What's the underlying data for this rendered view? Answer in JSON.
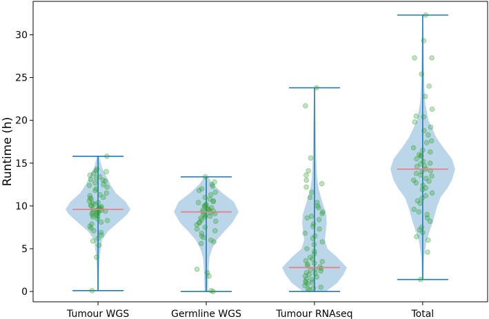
{
  "chart_data": {
    "type": "violin",
    "title": "",
    "xlabel": "",
    "ylabel": "Runtime (h)",
    "ylim": [
      -1.2,
      33.9
    ],
    "yticks": [
      0,
      5,
      10,
      15,
      20,
      25,
      30
    ],
    "categories": [
      "Tumour WGS",
      "Germline WGS",
      "Tumour RNAseq",
      "Total"
    ],
    "series": [
      {
        "name": "Tumour WGS",
        "min": 0.1,
        "max": 15.8,
        "median": 9.6,
        "density": [
          [
            0.1,
            0.02
          ],
          [
            2,
            0.03
          ],
          [
            4,
            0.05
          ],
          [
            6,
            0.12
          ],
          [
            7,
            0.3
          ],
          [
            8,
            0.6
          ],
          [
            9,
            0.9
          ],
          [
            9.6,
            1.0
          ],
          [
            10.5,
            0.85
          ],
          [
            11.5,
            0.55
          ],
          [
            12.5,
            0.38
          ],
          [
            13.5,
            0.25
          ],
          [
            14.5,
            0.12
          ],
          [
            15.8,
            0.03
          ]
        ]
      },
      {
        "name": "Germline WGS",
        "min": 0.0,
        "max": 13.4,
        "median": 9.3,
        "density": [
          [
            0.0,
            0.05
          ],
          [
            1,
            0.06
          ],
          [
            2,
            0.07
          ],
          [
            3,
            0.08
          ],
          [
            4,
            0.1
          ],
          [
            5,
            0.18
          ],
          [
            6,
            0.32
          ],
          [
            7,
            0.55
          ],
          [
            8,
            0.8
          ],
          [
            9.3,
            1.0
          ],
          [
            10.5,
            0.85
          ],
          [
            11.5,
            0.5
          ],
          [
            12.5,
            0.22
          ],
          [
            13.4,
            0.05
          ]
        ]
      },
      {
        "name": "Tumour RNAseq",
        "min": 0.0,
        "max": 23.8,
        "median": 2.8,
        "density": [
          [
            0.0,
            0.35
          ],
          [
            1,
            0.7
          ],
          [
            2,
            0.9
          ],
          [
            2.8,
            1.0
          ],
          [
            4,
            0.7
          ],
          [
            5,
            0.4
          ],
          [
            6,
            0.32
          ],
          [
            7,
            0.35
          ],
          [
            8,
            0.38
          ],
          [
            9,
            0.36
          ],
          [
            10,
            0.28
          ],
          [
            11,
            0.2
          ],
          [
            12,
            0.13
          ],
          [
            13,
            0.09
          ],
          [
            14,
            0.07
          ],
          [
            16,
            0.05
          ],
          [
            18,
            0.04
          ],
          [
            20,
            0.03
          ],
          [
            22,
            0.02
          ],
          [
            23.8,
            0.01
          ]
        ]
      },
      {
        "name": "Total",
        "min": 1.4,
        "max": 32.3,
        "median": 14.3,
        "density": [
          [
            1.4,
            0.02
          ],
          [
            4,
            0.04
          ],
          [
            6,
            0.12
          ],
          [
            8,
            0.3
          ],
          [
            10,
            0.45
          ],
          [
            11,
            0.55
          ],
          [
            12,
            0.75
          ],
          [
            13,
            0.9
          ],
          [
            14.3,
            1.0
          ],
          [
            15.5,
            0.9
          ],
          [
            17,
            0.6
          ],
          [
            18,
            0.42
          ],
          [
            19,
            0.3
          ],
          [
            20,
            0.18
          ],
          [
            22,
            0.08
          ],
          [
            24,
            0.05
          ],
          [
            26,
            0.04
          ],
          [
            28,
            0.03
          ],
          [
            30,
            0.02
          ],
          [
            32.3,
            0.01
          ]
        ]
      }
    ],
    "points": [
      [
        9.2,
        9.8,
        10.1,
        8.7,
        9.5,
        10.4,
        11.2,
        12.9,
        13.4,
        14.1,
        13.8,
        12.5,
        8.1,
        7.6,
        6.2,
        5.9,
        9.9,
        10.0,
        9.4,
        8.8,
        9.1,
        10.6,
        11.5,
        12.2,
        13.1,
        14.3,
        15.8,
        0.1,
        4.0,
        5.4,
        6.6,
        7.1,
        7.9,
        8.3,
        9.0,
        9.3,
        9.7,
        10.2,
        10.8,
        11.0,
        11.8,
        12.7,
        13.6,
        14.0,
        9.6,
        9.4,
        8.5,
        10.3,
        11.3,
        12.0,
        13.0,
        6.9,
        7.4,
        8.9,
        9.2,
        10.9,
        12.4,
        13.3,
        9.5,
        9.8
      ],
      [
        9.1,
        9.5,
        8.7,
        10.2,
        11.0,
        12.3,
        13.4,
        7.5,
        6.8,
        5.6,
        6.0,
        8.0,
        8.4,
        9.8,
        10.5,
        11.6,
        12.8,
        0.0,
        0.1,
        1.8,
        2.2,
        2.6,
        9.3,
        9.0,
        8.6,
        10.0,
        10.8,
        11.3,
        12.0,
        7.1,
        7.8,
        6.3,
        9.6,
        9.9,
        10.4,
        8.2,
        8.9,
        9.4,
        9.7,
        10.1,
        11.8,
        12.5,
        5.8,
        6.5,
        7.3,
        8.1,
        8.8,
        9.2,
        9.5,
        10.6
      ],
      [
        0.2,
        0.5,
        0.9,
        1.2,
        1.5,
        1.8,
        2.1,
        2.4,
        2.7,
        3.0,
        3.3,
        3.6,
        4.0,
        4.4,
        1.0,
        1.4,
        2.0,
        2.5,
        2.9,
        3.2,
        0.3,
        0.7,
        1.7,
        2.2,
        3.8,
        5.0,
        5.5,
        6.2,
        6.8,
        7.3,
        7.9,
        8.4,
        8.8,
        9.3,
        9.8,
        10.4,
        11.0,
        11.6,
        12.2,
        12.6,
        13.0,
        13.6,
        14.1,
        15.6,
        21.7,
        23.8,
        0.4,
        1.1,
        2.6,
        3.5,
        6.5,
        7.6,
        8.6,
        9.1,
        10.0,
        4.7,
        5.8
      ],
      [
        14.3,
        14.0,
        13.5,
        15.0,
        15.8,
        16.5,
        17.4,
        18.3,
        19.2,
        20.4,
        21.3,
        22.8,
        24.0,
        25.4,
        27.3,
        27.3,
        29.3,
        32.3,
        1.4,
        4.6,
        6.0,
        6.9,
        7.5,
        8.2,
        9.0,
        9.6,
        10.3,
        10.9,
        11.5,
        12.1,
        12.7,
        13.2,
        13.8,
        14.6,
        15.2,
        16.0,
        16.8,
        17.6,
        12.4,
        13.0,
        14.9,
        15.5,
        11.2,
        10.6,
        8.6,
        9.3,
        14.1,
        14.7,
        13.6,
        12.9,
        6.4,
        7.2,
        15.9,
        16.3,
        18.8,
        19.8,
        20.5,
        11.9
      ]
    ]
  }
}
